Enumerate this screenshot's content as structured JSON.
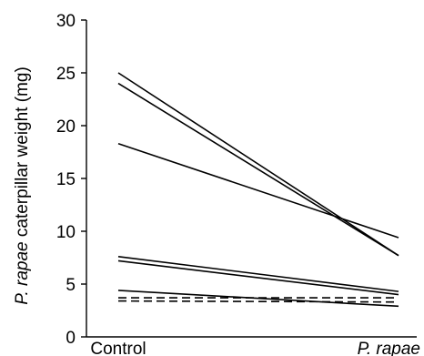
{
  "chart_data": {
    "type": "line",
    "categories": [
      "Control",
      "P. rapae"
    ],
    "category_styles": [
      "normal",
      "italic"
    ],
    "ylabel_parts": [
      {
        "text": "P. rapae",
        "italic": true
      },
      {
        "text": " caterpillar weight (mg)",
        "italic": false
      }
    ],
    "ylim": [
      0,
      30
    ],
    "yticks": [
      0,
      5,
      10,
      15,
      20,
      25,
      30
    ],
    "grid": false,
    "legend": "none",
    "series": [
      {
        "values": [
          25.0,
          7.7
        ],
        "style": "solid"
      },
      {
        "values": [
          24.0,
          7.7
        ],
        "style": "solid"
      },
      {
        "values": [
          18.3,
          9.4
        ],
        "style": "solid"
      },
      {
        "values": [
          7.6,
          4.3
        ],
        "style": "solid"
      },
      {
        "values": [
          7.2,
          4.0
        ],
        "style": "solid"
      },
      {
        "values": [
          4.4,
          2.9
        ],
        "style": "solid"
      },
      {
        "values": [
          3.7,
          3.7
        ],
        "style": "dashed"
      },
      {
        "values": [
          3.4,
          3.3
        ],
        "style": "dashed"
      }
    ],
    "line_color": "#000000"
  }
}
